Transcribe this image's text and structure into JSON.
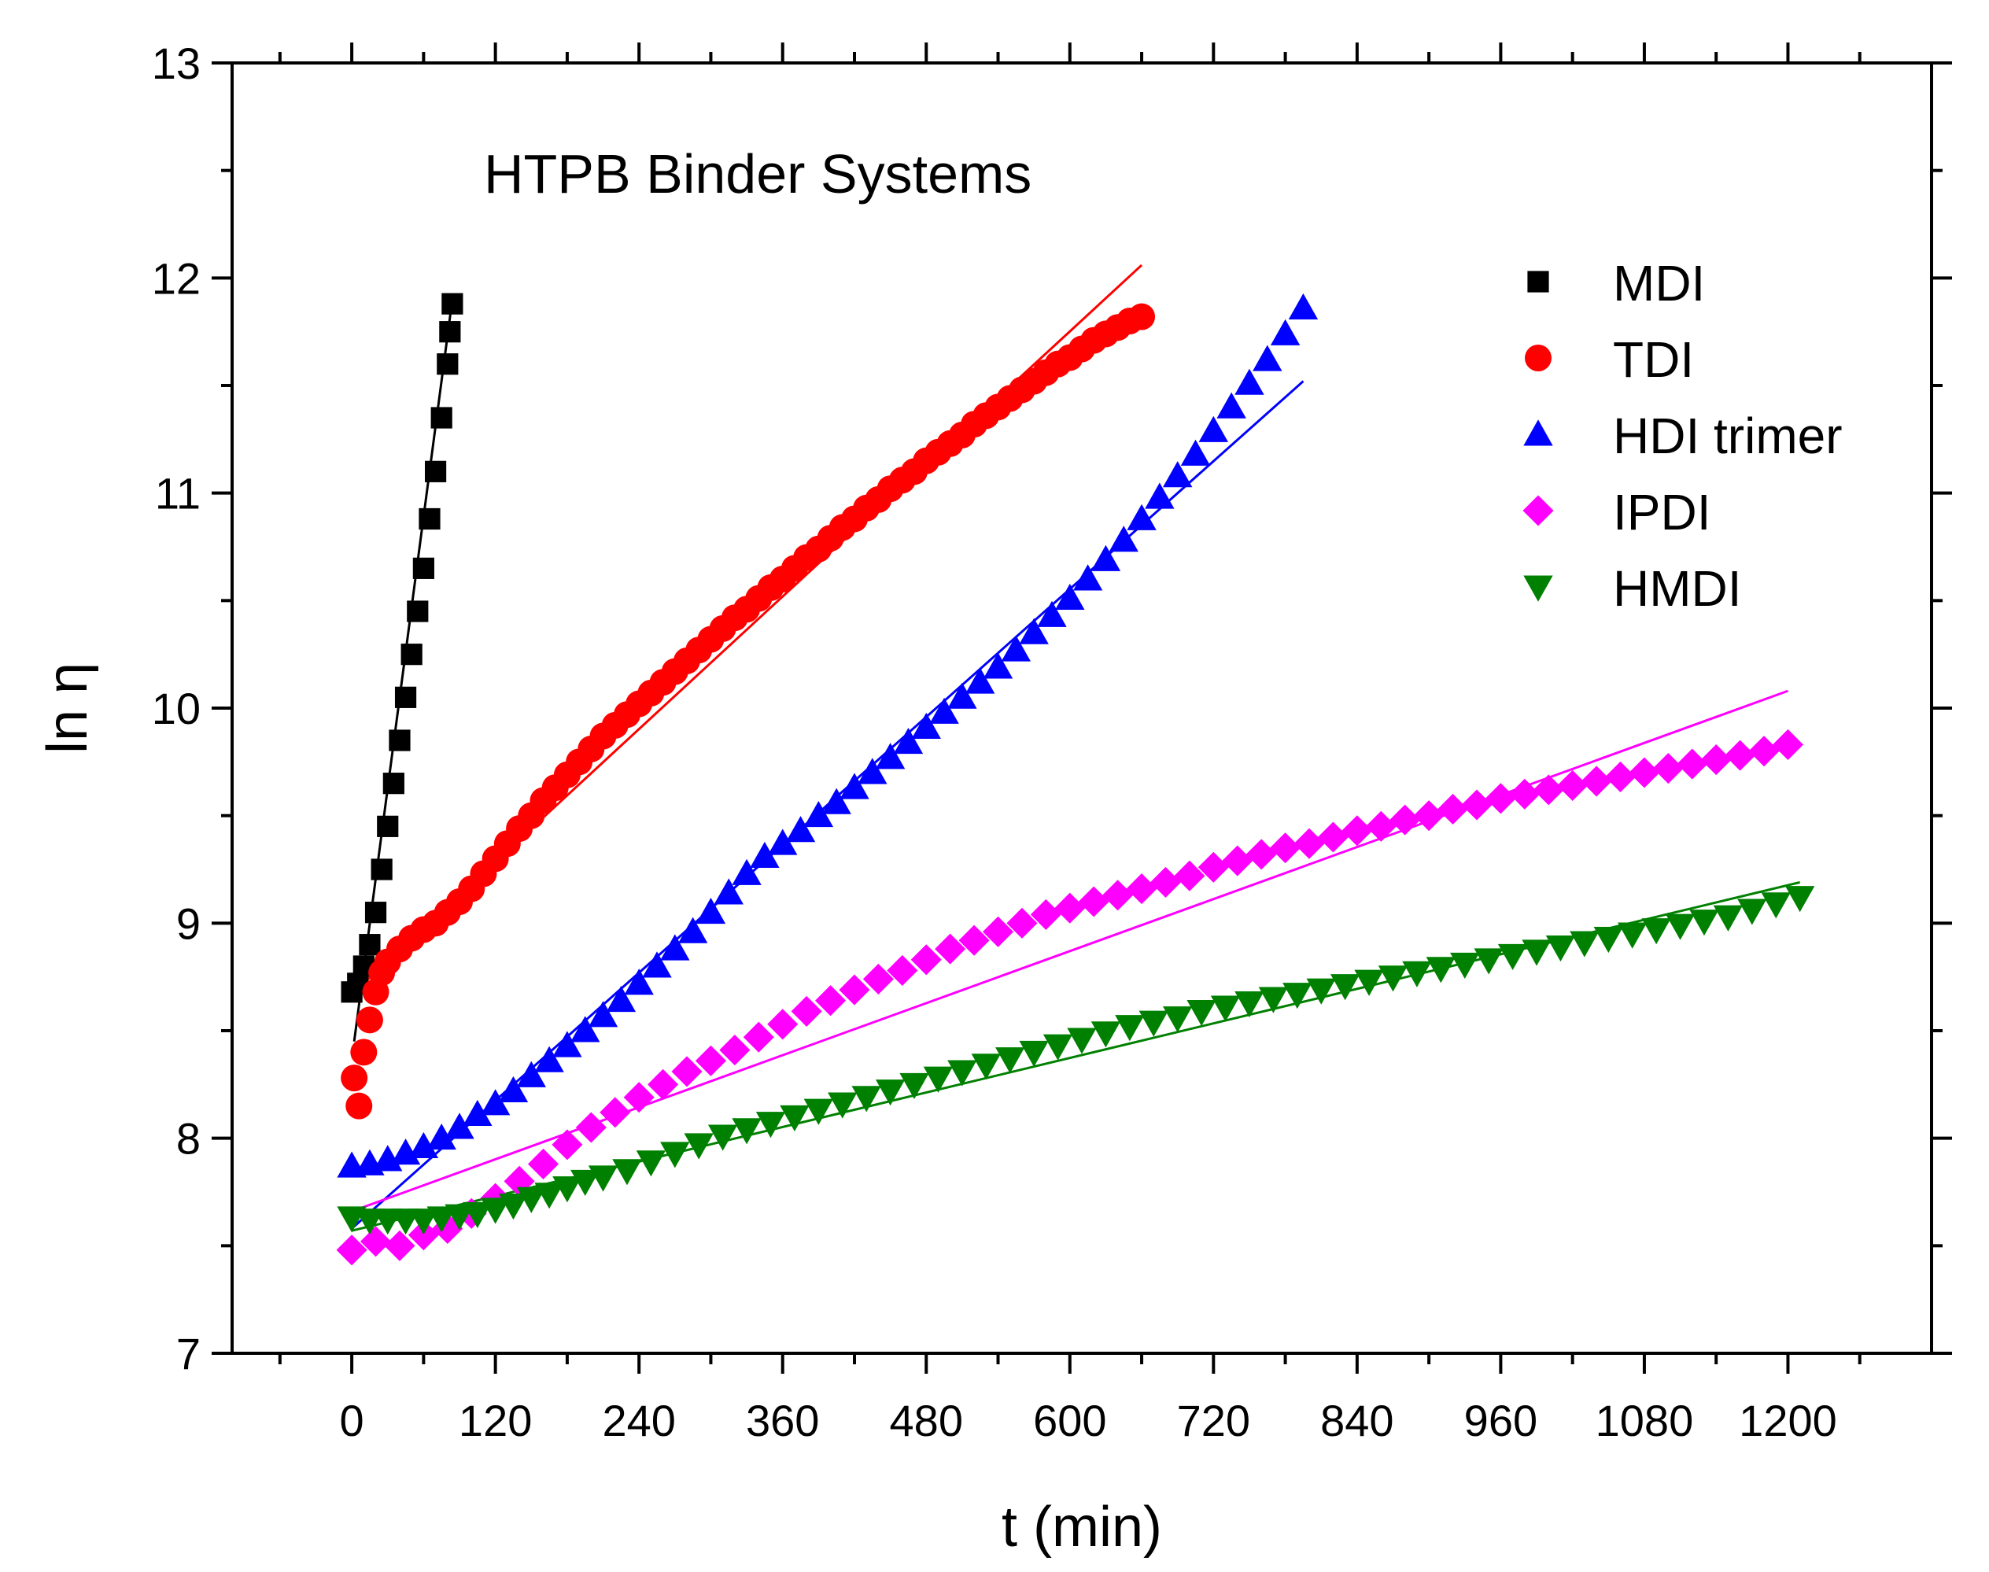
{
  "chart_data": {
    "type": "scatter",
    "title": "HTPB Binder Systems",
    "xlabel": "t (min)",
    "ylabel": "ln η",
    "xlim": [
      -100,
      1320
    ],
    "ylim": [
      7,
      13
    ],
    "x_ticks": [
      0,
      120,
      240,
      360,
      480,
      600,
      720,
      840,
      960,
      1080,
      1200
    ],
    "x_tick_labels": [
      "0",
      "120",
      "240",
      "360",
      "480",
      "600",
      "720",
      "840",
      "960",
      "1080",
      "1200"
    ],
    "y_ticks": [
      7,
      8,
      9,
      10,
      11,
      12,
      13
    ],
    "y_tick_labels": [
      "7",
      "8",
      "9",
      "10",
      "11",
      "12",
      "13"
    ],
    "legend_position": "top-right",
    "series": [
      {
        "name": "MDI",
        "marker": "square",
        "color": "#000000",
        "points": [
          [
            0,
            8.68
          ],
          [
            5,
            8.72
          ],
          [
            10,
            8.8
          ],
          [
            15,
            8.9
          ],
          [
            20,
            9.05
          ],
          [
            25,
            9.25
          ],
          [
            30,
            9.45
          ],
          [
            35,
            9.65
          ],
          [
            40,
            9.85
          ],
          [
            45,
            10.05
          ],
          [
            50,
            10.25
          ],
          [
            55,
            10.45
          ],
          [
            60,
            10.65
          ],
          [
            65,
            10.88
          ],
          [
            70,
            11.1
          ],
          [
            75,
            11.35
          ],
          [
            80,
            11.6
          ],
          [
            82,
            11.75
          ],
          [
            84,
            11.88
          ]
        ],
        "fit": [
          [
            2,
            8.45
          ],
          [
            84,
            11.9
          ]
        ]
      },
      {
        "name": "TDI",
        "marker": "circle",
        "color": "#ff0000",
        "points": [
          [
            2,
            8.28
          ],
          [
            6,
            8.15
          ],
          [
            10,
            8.4
          ],
          [
            15,
            8.55
          ],
          [
            20,
            8.68
          ],
          [
            25,
            8.77
          ],
          [
            30,
            8.82
          ],
          [
            40,
            8.88
          ],
          [
            50,
            8.93
          ],
          [
            60,
            8.97
          ],
          [
            70,
            9.0
          ],
          [
            80,
            9.05
          ],
          [
            90,
            9.1
          ],
          [
            100,
            9.16
          ],
          [
            110,
            9.23
          ],
          [
            120,
            9.3
          ],
          [
            130,
            9.37
          ],
          [
            140,
            9.44
          ],
          [
            150,
            9.5
          ],
          [
            160,
            9.57
          ],
          [
            170,
            9.63
          ],
          [
            180,
            9.69
          ],
          [
            190,
            9.75
          ],
          [
            200,
            9.81
          ],
          [
            210,
            9.87
          ],
          [
            220,
            9.92
          ],
          [
            230,
            9.97
          ],
          [
            240,
            10.02
          ],
          [
            250,
            10.07
          ],
          [
            260,
            10.12
          ],
          [
            270,
            10.17
          ],
          [
            280,
            10.22
          ],
          [
            290,
            10.27
          ],
          [
            300,
            10.32
          ],
          [
            310,
            10.37
          ],
          [
            320,
            10.42
          ],
          [
            330,
            10.46
          ],
          [
            340,
            10.51
          ],
          [
            350,
            10.56
          ],
          [
            360,
            10.6
          ],
          [
            370,
            10.65
          ],
          [
            380,
            10.7
          ],
          [
            390,
            10.74
          ],
          [
            400,
            10.79
          ],
          [
            410,
            10.84
          ],
          [
            420,
            10.88
          ],
          [
            430,
            10.93
          ],
          [
            440,
            10.97
          ],
          [
            450,
            11.02
          ],
          [
            460,
            11.06
          ],
          [
            470,
            11.1
          ],
          [
            480,
            11.15
          ],
          [
            490,
            11.19
          ],
          [
            500,
            11.23
          ],
          [
            510,
            11.27
          ],
          [
            520,
            11.32
          ],
          [
            530,
            11.36
          ],
          [
            540,
            11.4
          ],
          [
            550,
            11.44
          ],
          [
            560,
            11.48
          ],
          [
            570,
            11.52
          ],
          [
            580,
            11.56
          ],
          [
            590,
            11.6
          ],
          [
            600,
            11.63
          ],
          [
            610,
            11.67
          ],
          [
            620,
            11.71
          ],
          [
            630,
            11.74
          ],
          [
            640,
            11.77
          ],
          [
            650,
            11.8
          ],
          [
            660,
            11.82
          ]
        ],
        "fit": [
          [
            2,
            8.68
          ],
          [
            660,
            12.06
          ]
        ]
      },
      {
        "name": "HDI trimer",
        "marker": "triangle-up",
        "color": "#0000ff",
        "points": [
          [
            0,
            7.87
          ],
          [
            15,
            7.88
          ],
          [
            30,
            7.9
          ],
          [
            45,
            7.93
          ],
          [
            60,
            7.96
          ],
          [
            75,
            8.0
          ],
          [
            90,
            8.05
          ],
          [
            105,
            8.11
          ],
          [
            120,
            8.16
          ],
          [
            135,
            8.22
          ],
          [
            150,
            8.29
          ],
          [
            165,
            8.36
          ],
          [
            180,
            8.43
          ],
          [
            195,
            8.5
          ],
          [
            210,
            8.57
          ],
          [
            225,
            8.64
          ],
          [
            240,
            8.72
          ],
          [
            255,
            8.8
          ],
          [
            270,
            8.88
          ],
          [
            285,
            8.96
          ],
          [
            300,
            9.05
          ],
          [
            315,
            9.14
          ],
          [
            330,
            9.23
          ],
          [
            345,
            9.31
          ],
          [
            360,
            9.37
          ],
          [
            375,
            9.43
          ],
          [
            390,
            9.5
          ],
          [
            405,
            9.56
          ],
          [
            420,
            9.63
          ],
          [
            435,
            9.7
          ],
          [
            450,
            9.77
          ],
          [
            465,
            9.84
          ],
          [
            480,
            9.91
          ],
          [
            495,
            9.98
          ],
          [
            510,
            10.05
          ],
          [
            525,
            10.12
          ],
          [
            540,
            10.19
          ],
          [
            555,
            10.27
          ],
          [
            570,
            10.35
          ],
          [
            585,
            10.43
          ],
          [
            600,
            10.51
          ],
          [
            615,
            10.6
          ],
          [
            630,
            10.69
          ],
          [
            645,
            10.78
          ],
          [
            660,
            10.88
          ],
          [
            675,
            10.98
          ],
          [
            690,
            11.08
          ],
          [
            705,
            11.18
          ],
          [
            720,
            11.29
          ],
          [
            735,
            11.4
          ],
          [
            750,
            11.51
          ],
          [
            765,
            11.62
          ],
          [
            780,
            11.74
          ],
          [
            795,
            11.86
          ]
        ],
        "fit": [
          [
            0,
            7.58
          ],
          [
            795,
            11.52
          ]
        ]
      },
      {
        "name": "IPDI",
        "marker": "diamond",
        "color": "#ff00ff",
        "points": [
          [
            0,
            7.48
          ],
          [
            20,
            7.52
          ],
          [
            40,
            7.5
          ],
          [
            60,
            7.55
          ],
          [
            80,
            7.58
          ],
          [
            100,
            7.65
          ],
          [
            120,
            7.72
          ],
          [
            140,
            7.8
          ],
          [
            160,
            7.88
          ],
          [
            180,
            7.97
          ],
          [
            200,
            8.05
          ],
          [
            220,
            8.12
          ],
          [
            240,
            8.19
          ],
          [
            260,
            8.25
          ],
          [
            280,
            8.31
          ],
          [
            300,
            8.36
          ],
          [
            320,
            8.41
          ],
          [
            340,
            8.47
          ],
          [
            360,
            8.53
          ],
          [
            380,
            8.59
          ],
          [
            400,
            8.64
          ],
          [
            420,
            8.69
          ],
          [
            440,
            8.74
          ],
          [
            460,
            8.78
          ],
          [
            480,
            8.83
          ],
          [
            500,
            8.88
          ],
          [
            520,
            8.92
          ],
          [
            540,
            8.96
          ],
          [
            560,
            9.0
          ],
          [
            580,
            9.04
          ],
          [
            600,
            9.07
          ],
          [
            620,
            9.1
          ],
          [
            640,
            9.13
          ],
          [
            660,
            9.16
          ],
          [
            680,
            9.19
          ],
          [
            700,
            9.22
          ],
          [
            720,
            9.26
          ],
          [
            740,
            9.29
          ],
          [
            760,
            9.32
          ],
          [
            780,
            9.35
          ],
          [
            800,
            9.37
          ],
          [
            820,
            9.4
          ],
          [
            840,
            9.43
          ],
          [
            860,
            9.45
          ],
          [
            880,
            9.48
          ],
          [
            900,
            9.5
          ],
          [
            920,
            9.53
          ],
          [
            940,
            9.55
          ],
          [
            960,
            9.58
          ],
          [
            980,
            9.6
          ],
          [
            1000,
            9.62
          ],
          [
            1020,
            9.64
          ],
          [
            1040,
            9.66
          ],
          [
            1060,
            9.68
          ],
          [
            1080,
            9.7
          ],
          [
            1100,
            9.72
          ],
          [
            1120,
            9.74
          ],
          [
            1140,
            9.76
          ],
          [
            1160,
            9.78
          ],
          [
            1180,
            9.8
          ],
          [
            1200,
            9.83
          ]
        ],
        "fit": [
          [
            0,
            7.66
          ],
          [
            1200,
            10.08
          ]
        ]
      },
      {
        "name": "HMDI",
        "marker": "triangle-down",
        "color": "#008000",
        "points": [
          [
            0,
            7.63
          ],
          [
            15,
            7.62
          ],
          [
            30,
            7.62
          ],
          [
            45,
            7.62
          ],
          [
            60,
            7.62
          ],
          [
            75,
            7.63
          ],
          [
            90,
            7.64
          ],
          [
            105,
            7.65
          ],
          [
            120,
            7.67
          ],
          [
            135,
            7.69
          ],
          [
            150,
            7.72
          ],
          [
            165,
            7.74
          ],
          [
            180,
            7.77
          ],
          [
            195,
            7.8
          ],
          [
            210,
            7.82
          ],
          [
            230,
            7.85
          ],
          [
            250,
            7.89
          ],
          [
            270,
            7.93
          ],
          [
            290,
            7.97
          ],
          [
            310,
            8.01
          ],
          [
            330,
            8.04
          ],
          [
            350,
            8.07
          ],
          [
            370,
            8.1
          ],
          [
            390,
            8.13
          ],
          [
            410,
            8.16
          ],
          [
            430,
            8.19
          ],
          [
            450,
            8.22
          ],
          [
            470,
            8.25
          ],
          [
            490,
            8.28
          ],
          [
            510,
            8.31
          ],
          [
            530,
            8.34
          ],
          [
            550,
            8.37
          ],
          [
            570,
            8.4
          ],
          [
            590,
            8.43
          ],
          [
            610,
            8.46
          ],
          [
            630,
            8.49
          ],
          [
            650,
            8.52
          ],
          [
            670,
            8.54
          ],
          [
            690,
            8.56
          ],
          [
            710,
            8.59
          ],
          [
            730,
            8.61
          ],
          [
            750,
            8.63
          ],
          [
            770,
            8.65
          ],
          [
            790,
            8.67
          ],
          [
            810,
            8.69
          ],
          [
            830,
            8.71
          ],
          [
            850,
            8.73
          ],
          [
            870,
            8.75
          ],
          [
            890,
            8.77
          ],
          [
            910,
            8.79
          ],
          [
            930,
            8.81
          ],
          [
            950,
            8.83
          ],
          [
            970,
            8.85
          ],
          [
            990,
            8.87
          ],
          [
            1010,
            8.89
          ],
          [
            1030,
            8.91
          ],
          [
            1050,
            8.93
          ],
          [
            1070,
            8.95
          ],
          [
            1090,
            8.97
          ],
          [
            1110,
            8.99
          ],
          [
            1130,
            9.01
          ],
          [
            1150,
            9.03
          ],
          [
            1170,
            9.06
          ],
          [
            1190,
            9.09
          ],
          [
            1210,
            9.12
          ]
        ],
        "fit": [
          [
            0,
            7.57
          ],
          [
            1210,
            9.19
          ]
        ]
      }
    ]
  }
}
